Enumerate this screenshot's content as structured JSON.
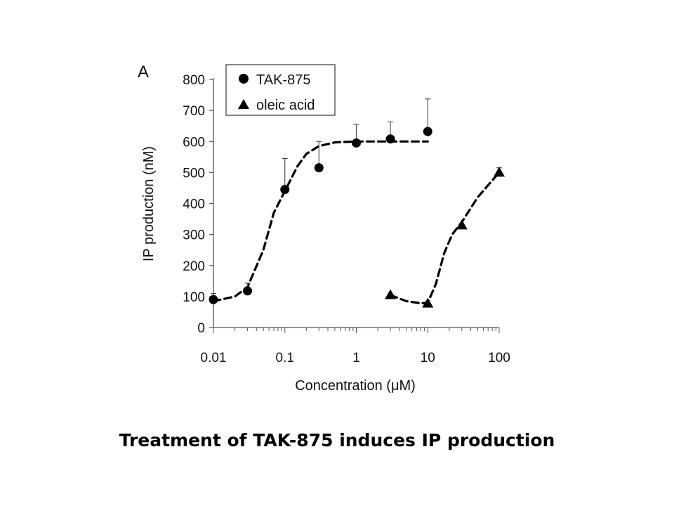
{
  "panel_label": "A",
  "caption": "Treatment of TAK-875 induces IP production",
  "chart_data": {
    "type": "scatter",
    "xscale": "log",
    "xlabel": "Concentration (μM)",
    "ylabel": "IP production (nM)",
    "xlim": [
      0.01,
      100
    ],
    "ylim": [
      0,
      800
    ],
    "x_ticks": [
      0.01,
      0.1,
      1,
      10,
      100
    ],
    "x_tick_labels": [
      "0.01",
      "0.1",
      "1",
      "10",
      "100"
    ],
    "y_ticks": [
      0,
      100,
      200,
      300,
      400,
      500,
      600,
      700,
      800
    ],
    "y_tick_labels": [
      "0",
      "100",
      "200",
      "300",
      "400",
      "500",
      "600",
      "700",
      "800"
    ],
    "grid": false,
    "legend_position": "top-left",
    "series": [
      {
        "name": "TAK-875",
        "marker": "circle",
        "color": "#000000",
        "points": [
          {
            "x": 0.01,
            "y": 90,
            "err": 20
          },
          {
            "x": 0.03,
            "y": 118,
            "err": 25
          },
          {
            "x": 0.1,
            "y": 445,
            "err": 100
          },
          {
            "x": 0.3,
            "y": 515,
            "err": 85
          },
          {
            "x": 1,
            "y": 595,
            "err": 60
          },
          {
            "x": 3,
            "y": 608,
            "err": 55
          },
          {
            "x": 10,
            "y": 632,
            "err": 105
          }
        ],
        "fit": [
          [
            0.01,
            85
          ],
          [
            0.02,
            100
          ],
          [
            0.03,
            130
          ],
          [
            0.05,
            250
          ],
          [
            0.07,
            370
          ],
          [
            0.1,
            440
          ],
          [
            0.15,
            520
          ],
          [
            0.2,
            560
          ],
          [
            0.3,
            585
          ],
          [
            0.5,
            597
          ],
          [
            1,
            600
          ],
          [
            3,
            600
          ],
          [
            10,
            600
          ]
        ]
      },
      {
        "name": "oleic acid",
        "marker": "triangle",
        "color": "#000000",
        "points": [
          {
            "x": 3,
            "y": 105,
            "err": 0
          },
          {
            "x": 10,
            "y": 78,
            "err": 0
          },
          {
            "x": 30,
            "y": 330,
            "err": 0
          },
          {
            "x": 100,
            "y": 500,
            "err": 15
          }
        ],
        "fit": [
          [
            3,
            105
          ],
          [
            5,
            85
          ],
          [
            8,
            78
          ],
          [
            10,
            80
          ],
          [
            13,
            140
          ],
          [
            17,
            240
          ],
          [
            22,
            300
          ],
          [
            30,
            340
          ],
          [
            50,
            420
          ],
          [
            100,
            500
          ]
        ]
      }
    ]
  }
}
